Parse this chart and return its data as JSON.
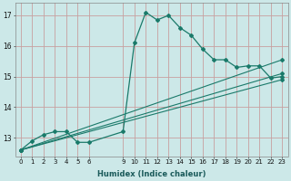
{
  "xlabel": "Humidex (Indice chaleur)",
  "bg_color": "#cce8e8",
  "grid_color": "#c8a0a0",
  "line_color": "#1a7a6a",
  "xlim": [
    -0.5,
    23.5
  ],
  "ylim": [
    12.4,
    17.4
  ],
  "yticks": [
    13,
    14,
    15,
    16,
    17
  ],
  "xticks": [
    0,
    1,
    2,
    3,
    4,
    5,
    6,
    9,
    10,
    11,
    12,
    13,
    14,
    15,
    16,
    17,
    18,
    19,
    20,
    21,
    22,
    23
  ],
  "series": [
    {
      "x": [
        0,
        1,
        2,
        3,
        4,
        5,
        6,
        9,
        10,
        11,
        12,
        13,
        14,
        15,
        16,
        17,
        18,
        19,
        20,
        21,
        22,
        23
      ],
      "y": [
        12.6,
        12.9,
        13.1,
        13.2,
        13.2,
        12.85,
        12.85,
        13.2,
        16.1,
        17.1,
        16.85,
        17.0,
        16.6,
        16.35,
        15.9,
        15.55,
        15.55,
        15.3,
        15.35,
        15.35,
        14.95,
        15.0
      ]
    },
    {
      "x": [
        0,
        23
      ],
      "y": [
        12.6,
        15.55
      ]
    },
    {
      "x": [
        0,
        23
      ],
      "y": [
        12.6,
        15.1
      ]
    },
    {
      "x": [
        0,
        23
      ],
      "y": [
        12.6,
        14.9
      ]
    }
  ]
}
